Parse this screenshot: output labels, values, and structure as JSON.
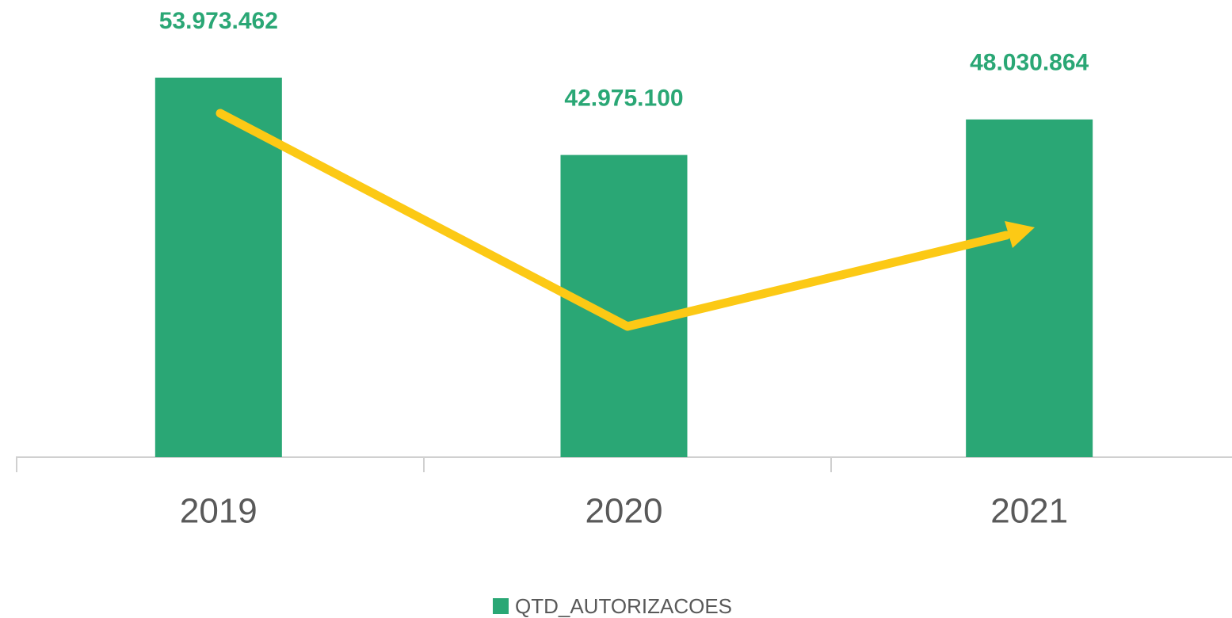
{
  "chart_data": {
    "type": "bar",
    "categories": [
      "2019",
      "2020",
      "2021"
    ],
    "series": [
      {
        "name": "QTD_AUTORIZACOES",
        "color": "#2aa775",
        "values": [
          53973462,
          42975100,
          48030864
        ],
        "value_labels": [
          "53.973.462",
          "42.975.100",
          "48.030.864"
        ]
      }
    ],
    "ylim": [
      0,
      60000000
    ]
  }
}
